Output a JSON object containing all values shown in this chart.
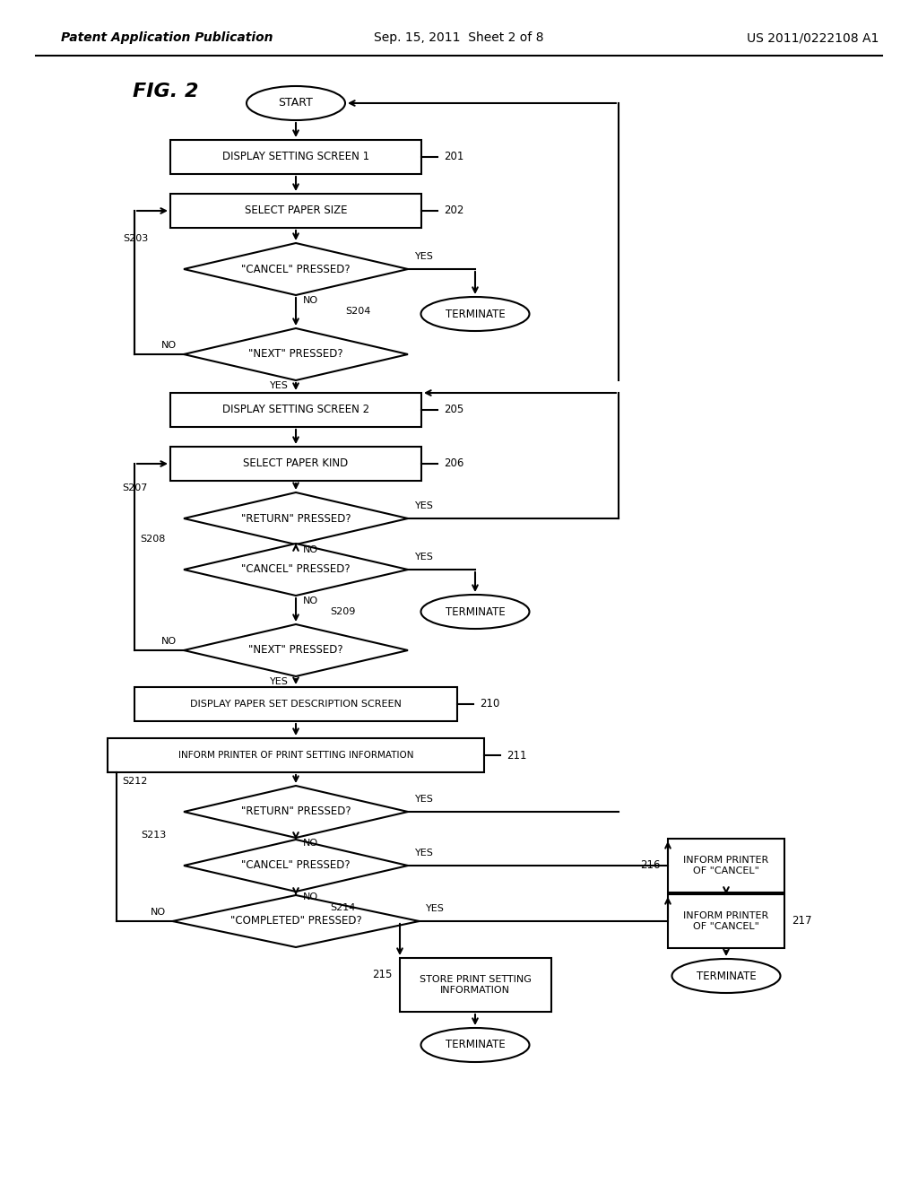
{
  "header_left": "Patent Application Publication",
  "header_mid": "Sep. 15, 2011  Sheet 2 of 8",
  "header_right": "US 2011/0222108 A1",
  "fig_label": "FIG. 2",
  "bg_color": "#ffffff",
  "line_color": "#000000",
  "text_color": "#000000"
}
